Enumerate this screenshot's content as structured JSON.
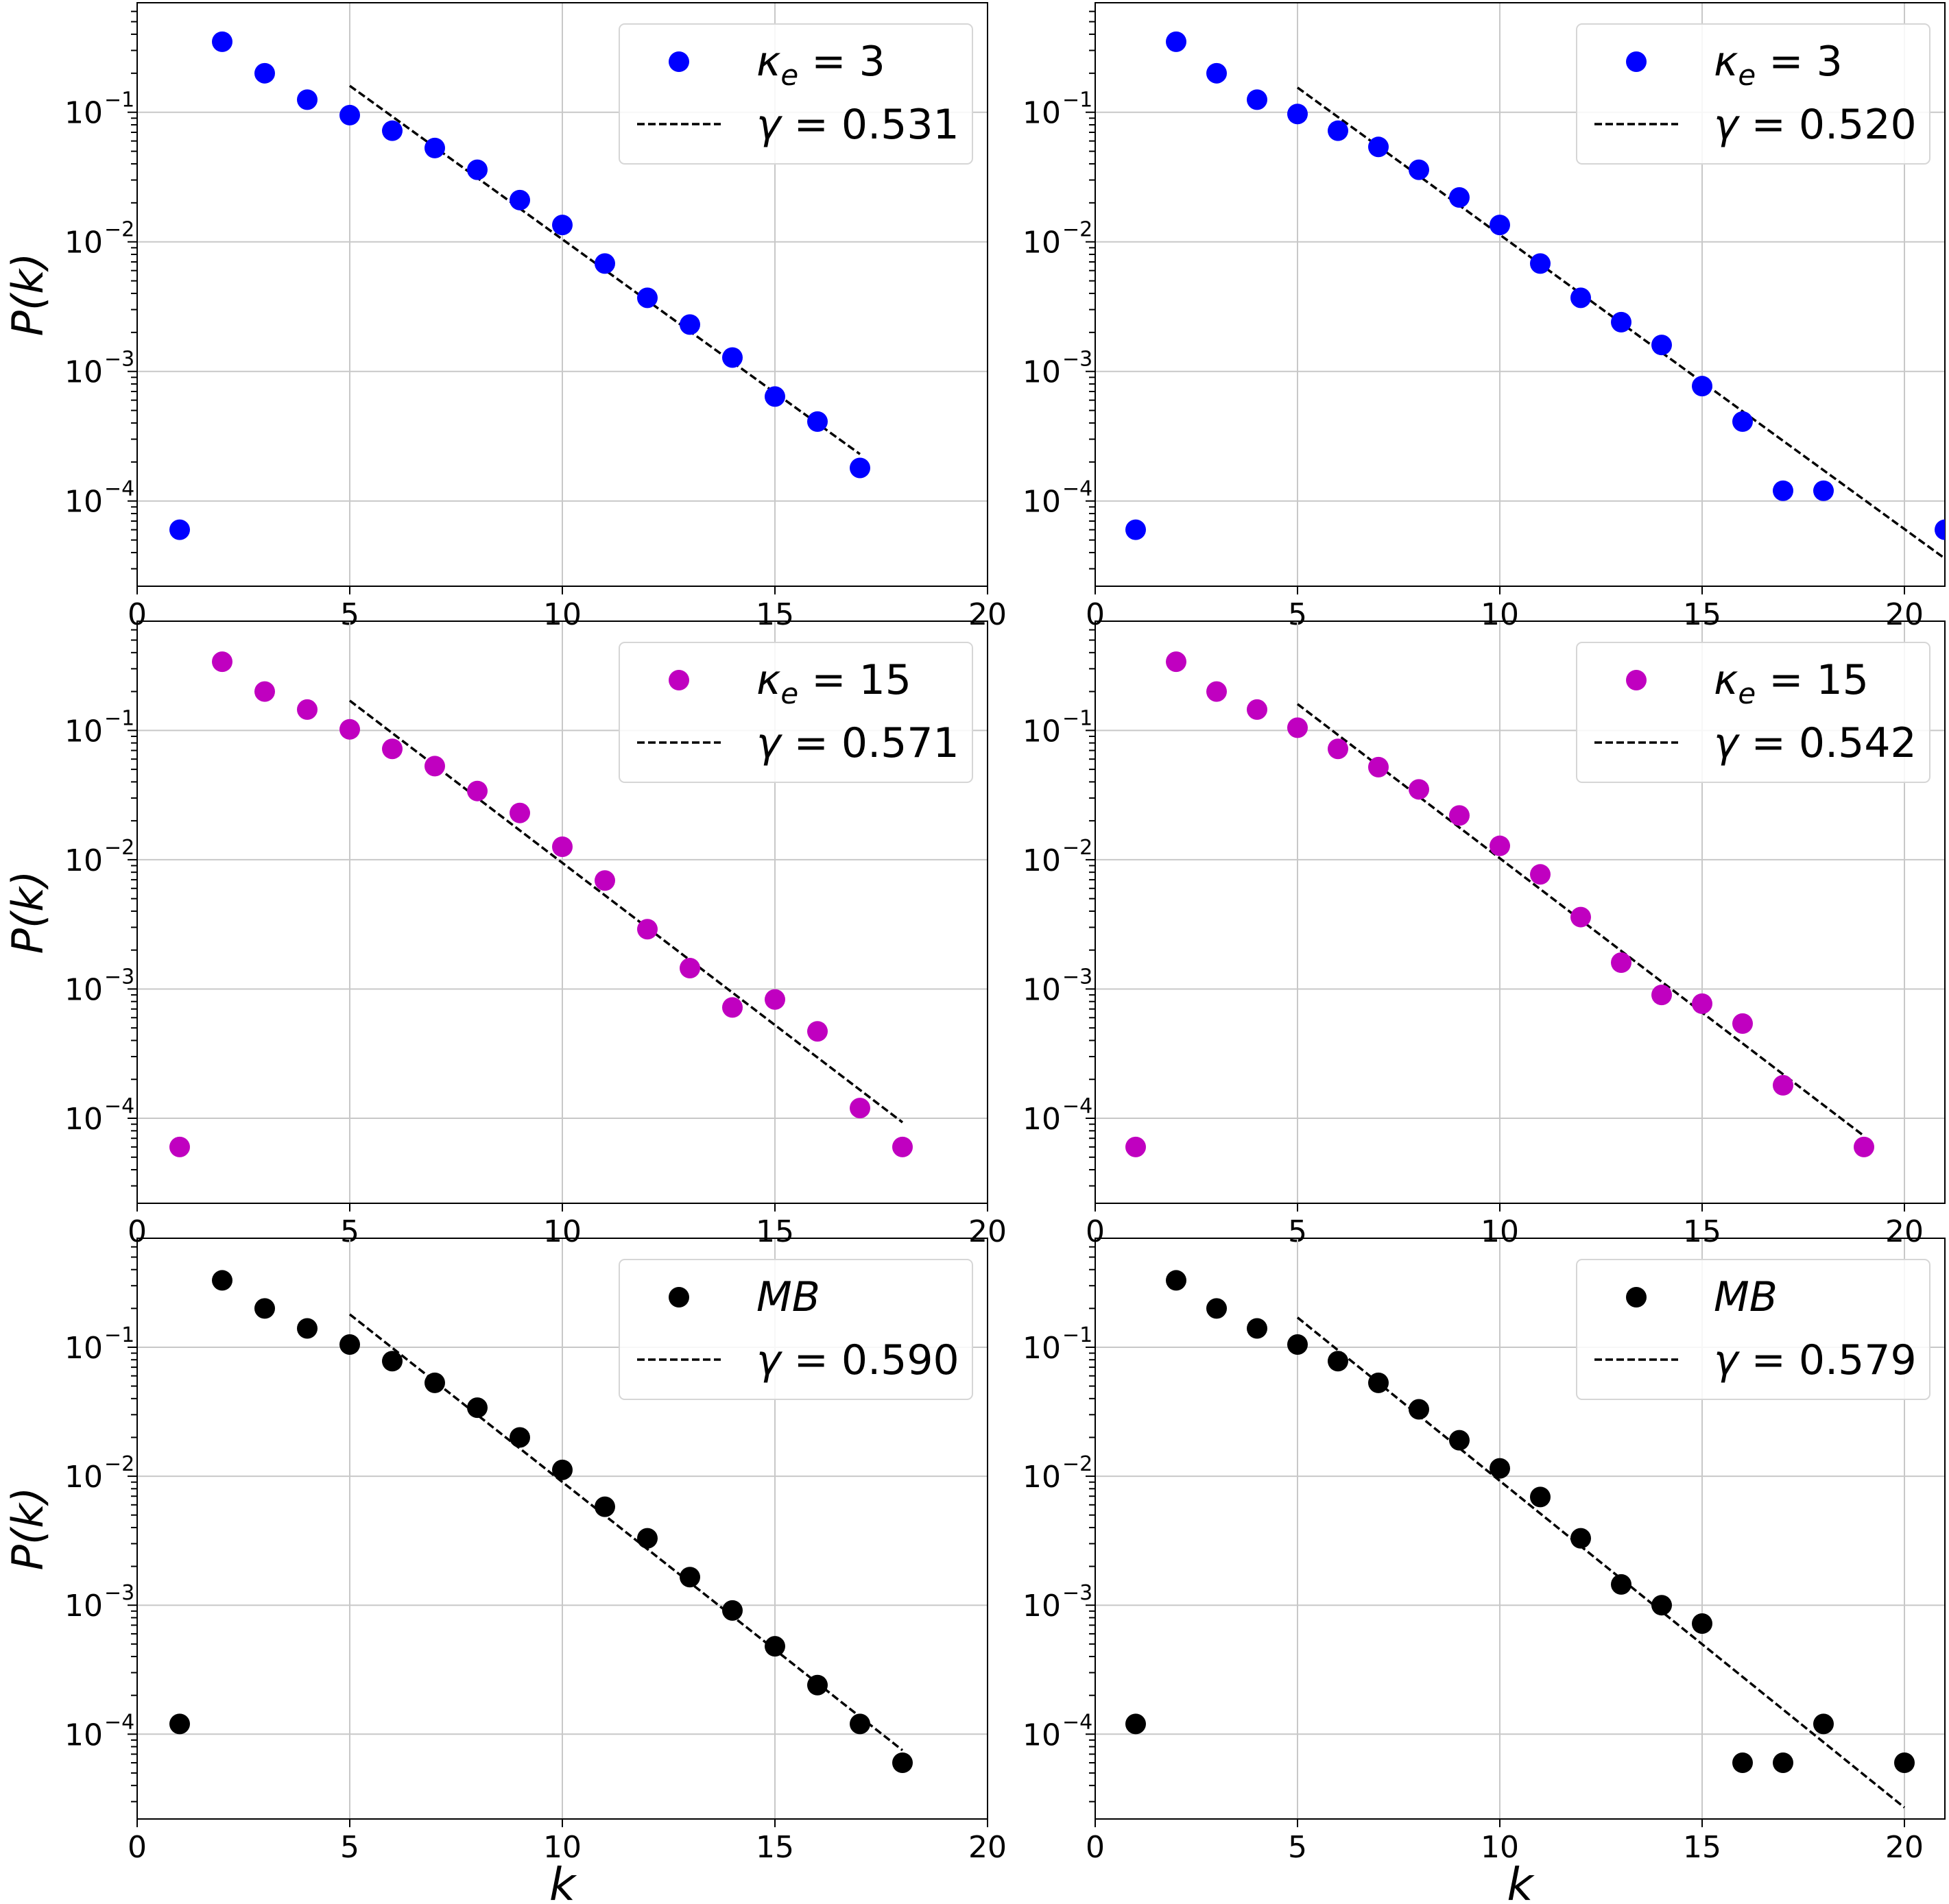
{
  "figure": {
    "xlabel_text": "k",
    "ylabel_text": "P(k)"
  },
  "colors": {
    "blue": "#0000ff",
    "magenta": "#c000c0",
    "black": "#000000",
    "fit": "#000000",
    "grid": "#c8c8c8"
  },
  "chart_data": [
    {
      "type": "scatter",
      "panel": "top-left",
      "yscale": "log",
      "xlim": [
        0,
        20
      ],
      "ylim": [
        2.2e-05,
        0.7
      ],
      "xticks": [
        0,
        5,
        10,
        15,
        20
      ],
      "xtick_labels": [
        "0",
        "5",
        "10",
        "15",
        "20"
      ],
      "yticks": [
        0.1,
        0.01,
        0.001,
        0.0001
      ],
      "ytick_labels": [
        [
          "10",
          "−1"
        ],
        [
          "10",
          "−2"
        ],
        [
          "10",
          "−3"
        ],
        [
          "10",
          "−4"
        ]
      ],
      "ylabel": "P(k)",
      "xlabel": "",
      "legend_position": "top-right",
      "series": [
        {
          "name": "κe = 3",
          "legend_sym": "κ",
          "legend_sub": "e",
          "legend_rest": " = 3",
          "color": "#0000ff",
          "x": [
            1,
            2,
            3,
            4,
            5,
            6,
            7,
            8,
            9,
            10,
            11,
            12,
            13,
            14,
            15,
            16,
            17
          ],
          "y": [
            6e-05,
            0.35,
            0.2,
            0.125,
            0.095,
            0.072,
            0.053,
            0.036,
            0.021,
            0.0135,
            0.0068,
            0.0037,
            0.0023,
            0.00128,
            0.00064,
            0.00041,
            0.00018
          ]
        },
        {
          "name": "γ = 0.531",
          "legend_sym": "γ",
          "legend_sub": "",
          "legend_rest": " = 0.531",
          "style": "dashed",
          "fit": true,
          "x": [
            5,
            17
          ],
          "y": [
            0.16,
            0.00023
          ]
        }
      ]
    },
    {
      "type": "scatter",
      "panel": "top-right",
      "yscale": "log",
      "xlim": [
        0,
        21
      ],
      "ylim": [
        2.2e-05,
        0.7
      ],
      "xticks": [
        0,
        5,
        10,
        15,
        20
      ],
      "xtick_labels": [
        "0",
        "5",
        "10",
        "15",
        "20"
      ],
      "yticks": [
        0.1,
        0.01,
        0.001,
        0.0001
      ],
      "ytick_labels": [
        [
          "10",
          "−1"
        ],
        [
          "10",
          "−2"
        ],
        [
          "10",
          "−3"
        ],
        [
          "10",
          "−4"
        ]
      ],
      "ylabel": "",
      "xlabel": "",
      "legend_position": "top-right",
      "series": [
        {
          "name": "κe = 3",
          "legend_sym": "κ",
          "legend_sub": "e",
          "legend_rest": " = 3",
          "color": "#0000ff",
          "x": [
            1,
            2,
            3,
            4,
            5,
            6,
            7,
            8,
            9,
            10,
            11,
            12,
            13,
            14,
            15,
            16,
            17,
            18,
            21
          ],
          "y": [
            6e-05,
            0.35,
            0.2,
            0.125,
            0.097,
            0.072,
            0.054,
            0.036,
            0.022,
            0.0135,
            0.0068,
            0.0037,
            0.0024,
            0.0016,
            0.00077,
            0.00041,
            0.00012,
            0.00012,
            6e-05
          ]
        },
        {
          "name": "γ = 0.520",
          "legend_sym": "γ",
          "legend_sub": "",
          "legend_rest": " = 0.520",
          "style": "dashed",
          "fit": true,
          "x": [
            5,
            21
          ],
          "y": [
            0.155,
            3.6e-05
          ]
        }
      ]
    },
    {
      "type": "scatter",
      "panel": "middle-left",
      "yscale": "log",
      "xlim": [
        0,
        20
      ],
      "ylim": [
        2.2e-05,
        0.7
      ],
      "xticks": [
        0,
        5,
        10,
        15,
        20
      ],
      "xtick_labels": [
        "0",
        "5",
        "10",
        "15",
        "20"
      ],
      "yticks": [
        0.1,
        0.01,
        0.001,
        0.0001
      ],
      "ytick_labels": [
        [
          "10",
          "−1"
        ],
        [
          "10",
          "−2"
        ],
        [
          "10",
          "−3"
        ],
        [
          "10",
          "−4"
        ]
      ],
      "ylabel": "P(k)",
      "xlabel": "",
      "legend_position": "top-right",
      "series": [
        {
          "name": "κe = 15",
          "legend_sym": "κ",
          "legend_sub": "e",
          "legend_rest": " = 15",
          "color": "#c000c0",
          "x": [
            1,
            2,
            3,
            4,
            5,
            6,
            7,
            8,
            9,
            10,
            11,
            12,
            13,
            14,
            15,
            16,
            17,
            18
          ],
          "y": [
            6e-05,
            0.34,
            0.2,
            0.145,
            0.102,
            0.072,
            0.053,
            0.034,
            0.023,
            0.0126,
            0.0069,
            0.0029,
            0.00145,
            0.00072,
            0.00083,
            0.00047,
            0.00012,
            6e-05
          ]
        },
        {
          "name": "γ = 0.571",
          "legend_sym": "γ",
          "legend_sub": "",
          "legend_rest": " = 0.571",
          "style": "dashed",
          "fit": true,
          "x": [
            5,
            18
          ],
          "y": [
            0.17,
            9.3e-05
          ]
        }
      ]
    },
    {
      "type": "scatter",
      "panel": "middle-right",
      "yscale": "log",
      "xlim": [
        0,
        21
      ],
      "ylim": [
        2.2e-05,
        0.7
      ],
      "xticks": [
        0,
        5,
        10,
        15,
        20
      ],
      "xtick_labels": [
        "0",
        "5",
        "10",
        "15",
        "20"
      ],
      "yticks": [
        0.1,
        0.01,
        0.001,
        0.0001
      ],
      "ytick_labels": [
        [
          "10",
          "−1"
        ],
        [
          "10",
          "−2"
        ],
        [
          "10",
          "−3"
        ],
        [
          "10",
          "−4"
        ]
      ],
      "ylabel": "",
      "xlabel": "",
      "legend_position": "top-right",
      "series": [
        {
          "name": "κe = 15",
          "legend_sym": "κ",
          "legend_sub": "e",
          "legend_rest": " = 15",
          "color": "#c000c0",
          "x": [
            1,
            2,
            3,
            4,
            5,
            6,
            7,
            8,
            9,
            10,
            11,
            12,
            13,
            14,
            15,
            16,
            17,
            19
          ],
          "y": [
            6e-05,
            0.34,
            0.2,
            0.145,
            0.105,
            0.072,
            0.052,
            0.035,
            0.022,
            0.0128,
            0.0077,
            0.0036,
            0.0016,
            0.0009,
            0.00077,
            0.00054,
            0.00018,
            6e-05
          ]
        },
        {
          "name": "γ = 0.542",
          "legend_sym": "γ",
          "legend_sub": "",
          "legend_rest": " = 0.542",
          "style": "dashed",
          "fit": true,
          "x": [
            5,
            19
          ],
          "y": [
            0.16,
            7.3e-05
          ]
        }
      ]
    },
    {
      "type": "scatter",
      "panel": "bottom-left",
      "yscale": "log",
      "xlim": [
        0,
        20
      ],
      "ylim": [
        2.2e-05,
        0.7
      ],
      "xticks": [
        0,
        5,
        10,
        15,
        20
      ],
      "xtick_labels": [
        "0",
        "5",
        "10",
        "15",
        "20"
      ],
      "yticks": [
        0.1,
        0.01,
        0.001,
        0.0001
      ],
      "ytick_labels": [
        [
          "10",
          "−1"
        ],
        [
          "10",
          "−2"
        ],
        [
          "10",
          "−3"
        ],
        [
          "10",
          "−4"
        ]
      ],
      "ylabel": "P(k)",
      "xlabel": "k",
      "legend_position": "top-right",
      "series": [
        {
          "name": "MB",
          "legend_sym": "MB",
          "legend_sub": "",
          "legend_rest": "",
          "color": "#000000",
          "x": [
            1,
            2,
            3,
            4,
            5,
            6,
            7,
            8,
            9,
            10,
            11,
            12,
            13,
            14,
            15,
            16,
            17,
            18
          ],
          "y": [
            0.00012,
            0.33,
            0.2,
            0.14,
            0.105,
            0.078,
            0.053,
            0.034,
            0.02,
            0.0112,
            0.0058,
            0.0033,
            0.00165,
            0.00091,
            0.00048,
            0.00024,
            0.00012,
            6e-05
          ]
        },
        {
          "name": "γ = 0.590",
          "legend_sym": "γ",
          "legend_sub": "",
          "legend_rest": " = 0.590",
          "style": "dashed",
          "fit": true,
          "x": [
            5,
            18
          ],
          "y": [
            0.18,
            7.5e-05
          ]
        }
      ]
    },
    {
      "type": "scatter",
      "panel": "bottom-right",
      "yscale": "log",
      "xlim": [
        0,
        21
      ],
      "ylim": [
        2.2e-05,
        0.7
      ],
      "xticks": [
        0,
        5,
        10,
        15,
        20
      ],
      "xtick_labels": [
        "0",
        "5",
        "10",
        "15",
        "20"
      ],
      "yticks": [
        0.1,
        0.01,
        0.001,
        0.0001
      ],
      "ytick_labels": [
        [
          "10",
          "−1"
        ],
        [
          "10",
          "−2"
        ],
        [
          "10",
          "−3"
        ],
        [
          "10",
          "−4"
        ]
      ],
      "ylabel": "",
      "xlabel": "k",
      "legend_position": "top-right",
      "series": [
        {
          "name": "MB",
          "legend_sym": "MB",
          "legend_sub": "",
          "legend_rest": "",
          "color": "#000000",
          "x": [
            1,
            2,
            3,
            4,
            5,
            6,
            7,
            8,
            9,
            10,
            11,
            12,
            13,
            14,
            15,
            16,
            17,
            18,
            20
          ],
          "y": [
            0.00012,
            0.33,
            0.2,
            0.14,
            0.105,
            0.078,
            0.053,
            0.033,
            0.019,
            0.0115,
            0.0069,
            0.0033,
            0.00145,
            0.001,
            0.00072,
            6e-05,
            6e-05,
            0.00012,
            6e-05
          ]
        },
        {
          "name": "γ = 0.579",
          "legend_sym": "γ",
          "legend_sub": "",
          "legend_rest": " = 0.579",
          "style": "dashed",
          "fit": true,
          "x": [
            5,
            20
          ],
          "y": [
            0.17,
            2.7e-05
          ]
        }
      ]
    }
  ]
}
